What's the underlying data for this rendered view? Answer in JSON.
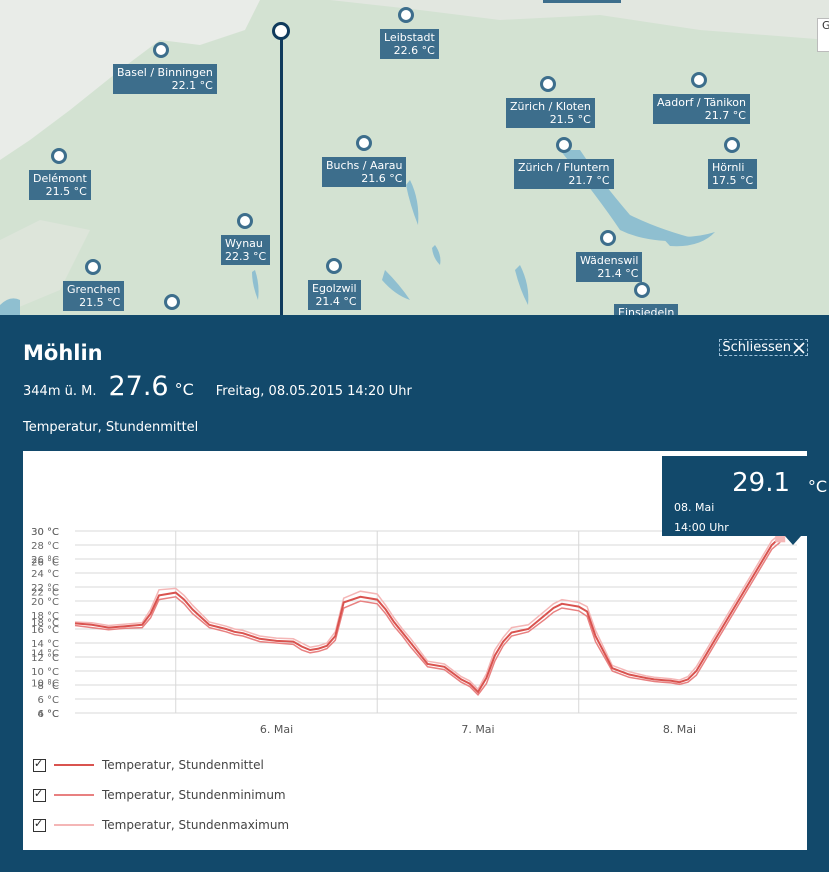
{
  "map": {
    "stations": [
      {
        "name": "Basel / Binningen",
        "temp": "22.1 °C"
      },
      {
        "name": "Leibstadt",
        "temp": "22.6 °C"
      },
      {
        "name": "Zürich / Kloten",
        "temp": "21.5 °C"
      },
      {
        "name": "Aadorf / Tänikon",
        "temp": "21.7 °C"
      },
      {
        "name": "Delémont",
        "temp": "21.5 °C"
      },
      {
        "name": "Buchs / Aarau",
        "temp": "21.6 °C"
      },
      {
        "name": "Zürich / Fluntern",
        "temp": "21.7 °C"
      },
      {
        "name": "Hörnli",
        "temp": "17.5 °C"
      },
      {
        "name": "Wynau",
        "temp": "22.3 °C"
      },
      {
        "name": "Wädenswil",
        "temp": "21.4 °C"
      },
      {
        "name": "Grenchen",
        "temp": "21.5 °C"
      },
      {
        "name": "Egolzwil",
        "temp": "21.4 °C"
      },
      {
        "name": "Einsiedeln",
        "temp": ""
      }
    ],
    "edge_label": "G"
  },
  "panel": {
    "title": "Möhlin",
    "close_label": "Schliessen",
    "elevation": "344m ü. M.",
    "current_temp": "27.6",
    "unit": "°C",
    "datetime": "Freitag, 08.05.2015 14:20 Uhr",
    "subtitle": "Temperatur, Stundenmittel"
  },
  "tooltip": {
    "value": "29.1",
    "unit": "°C",
    "date": "08. Mai",
    "time": "14:00 Uhr"
  },
  "legend": [
    {
      "label": "Temperatur, Stundenmittel",
      "color": "#d9534f",
      "checked": true
    },
    {
      "label": "Temperatur, Stundenminimum",
      "color": "#e88080",
      "checked": true
    },
    {
      "label": "Temperatur, Stundenmaximum",
      "color": "#f4b6b6",
      "checked": true
    }
  ],
  "chart_data": {
    "type": "line",
    "xlabels": [
      {
        "label": "6. Mai",
        "hour": 48
      },
      {
        "label": "7. Mai",
        "hour": 72
      },
      {
        "label": "8. Mai",
        "hour": 96
      }
    ],
    "yticks_a": [
      "30 °C",
      "28 °C",
      "26 °C",
      "24 °C",
      "22 °C",
      "20 °C",
      "18 °C",
      "16 °C",
      "14 °C",
      "12 °C",
      "10 °C",
      "8 °C",
      "6 °C",
      "4 °C"
    ],
    "yticks_b": [
      "30 °C",
      "26 °C",
      "22 °C",
      "18 °C",
      "14 °C",
      "10 °C",
      "6 °C"
    ],
    "ylim": [
      4,
      30
    ],
    "xlim": [
      24,
      110
    ],
    "series": [
      {
        "name": "Temperatur, Stundenmittel",
        "color": "#d9534f",
        "x": [
          24,
          26,
          28,
          30,
          32,
          33,
          34,
          36,
          37,
          38,
          40,
          42,
          43,
          44,
          46,
          48,
          50,
          51,
          52,
          53,
          54,
          55,
          56,
          58,
          60,
          61,
          62,
          63,
          64,
          66,
          68,
          70,
          71,
          72,
          73,
          74,
          75,
          76,
          78,
          80,
          81,
          82,
          83,
          84,
          85,
          86,
          88,
          90,
          92,
          93,
          94,
          95,
          96,
          97,
          98,
          99,
          100,
          101,
          102,
          103,
          104,
          105,
          106,
          107,
          108
        ],
        "y": [
          16.8,
          16.6,
          16.2,
          16.4,
          16.6,
          18.2,
          20.8,
          21.2,
          20.2,
          18.8,
          16.6,
          16.0,
          15.6,
          15.4,
          14.6,
          14.3,
          14.2,
          13.5,
          13.0,
          13.2,
          13.6,
          15.0,
          19.8,
          20.6,
          20.2,
          18.8,
          17.0,
          15.5,
          14.0,
          11.0,
          10.6,
          8.8,
          8.2,
          7.0,
          9.0,
          12.2,
          14.2,
          15.5,
          16.0,
          18.0,
          19.0,
          19.6,
          19.4,
          19.2,
          18.5,
          15.0,
          10.4,
          9.5,
          9.0,
          8.8,
          8.7,
          8.6,
          8.4,
          8.8,
          10.0,
          12.0,
          14.0,
          16.0,
          18.0,
          20.0,
          22.0,
          24.0,
          26.0,
          28.0,
          29.1
        ]
      },
      {
        "name": "Temperatur, Stundenminimum",
        "color": "#e88080",
        "x": [
          24,
          26,
          28,
          30,
          32,
          33,
          34,
          36,
          37,
          38,
          40,
          42,
          43,
          44,
          46,
          48,
          50,
          51,
          52,
          53,
          54,
          55,
          56,
          58,
          60,
          61,
          62,
          63,
          64,
          66,
          68,
          70,
          71,
          72,
          73,
          74,
          75,
          76,
          78,
          80,
          81,
          82,
          83,
          84,
          85,
          86,
          88,
          90,
          92,
          93,
          94,
          95,
          96,
          97,
          98,
          99,
          100,
          101,
          102,
          103,
          104,
          105,
          106,
          107,
          108
        ],
        "y": [
          16.5,
          16.2,
          15.9,
          16.1,
          16.2,
          17.6,
          20.2,
          20.6,
          19.6,
          18.2,
          16.2,
          15.6,
          15.2,
          15.0,
          14.2,
          14.0,
          13.8,
          13.0,
          12.6,
          12.8,
          13.2,
          14.4,
          19.0,
          20.0,
          19.6,
          18.2,
          16.4,
          15.0,
          13.4,
          10.6,
          10.2,
          8.4,
          7.8,
          6.6,
          8.2,
          11.4,
          13.6,
          15.0,
          15.6,
          17.4,
          18.4,
          19.0,
          18.8,
          18.6,
          17.8,
          14.2,
          10.0,
          9.1,
          8.7,
          8.5,
          8.4,
          8.3,
          8.1,
          8.4,
          9.4,
          11.4,
          13.4,
          15.4,
          17.4,
          19.4,
          21.4,
          23.4,
          25.4,
          27.4,
          28.4
        ]
      },
      {
        "name": "Temperatur, Stundenmaximum",
        "color": "#f4b6b6",
        "x": [
          24,
          26,
          28,
          30,
          32,
          33,
          34,
          36,
          37,
          38,
          40,
          42,
          43,
          44,
          46,
          48,
          50,
          51,
          52,
          53,
          54,
          55,
          56,
          58,
          60,
          61,
          62,
          63,
          64,
          66,
          68,
          70,
          71,
          72,
          73,
          74,
          75,
          76,
          78,
          80,
          81,
          82,
          83,
          84,
          85,
          86,
          88,
          90,
          92,
          93,
          94,
          95,
          96,
          97,
          98,
          99,
          100,
          101,
          102,
          103,
          104,
          105,
          106,
          107,
          108
        ],
        "y": [
          17.0,
          16.9,
          16.5,
          16.7,
          16.9,
          18.8,
          21.6,
          21.8,
          20.8,
          19.4,
          17.0,
          16.4,
          16.0,
          15.8,
          15.0,
          14.7,
          14.6,
          14.0,
          13.4,
          13.6,
          14.0,
          15.6,
          20.4,
          21.4,
          21.0,
          19.4,
          17.6,
          16.0,
          14.6,
          11.4,
          11.0,
          9.2,
          8.6,
          7.4,
          9.6,
          13.0,
          14.8,
          16.2,
          16.6,
          18.6,
          19.6,
          20.2,
          20.0,
          19.8,
          19.2,
          15.8,
          10.8,
          9.9,
          9.3,
          9.1,
          9.0,
          8.9,
          8.7,
          9.2,
          10.6,
          12.6,
          14.6,
          16.6,
          18.6,
          20.6,
          22.6,
          24.6,
          26.6,
          28.6,
          29.6
        ]
      }
    ],
    "highlight": {
      "x": 108,
      "y": 29.1
    }
  }
}
